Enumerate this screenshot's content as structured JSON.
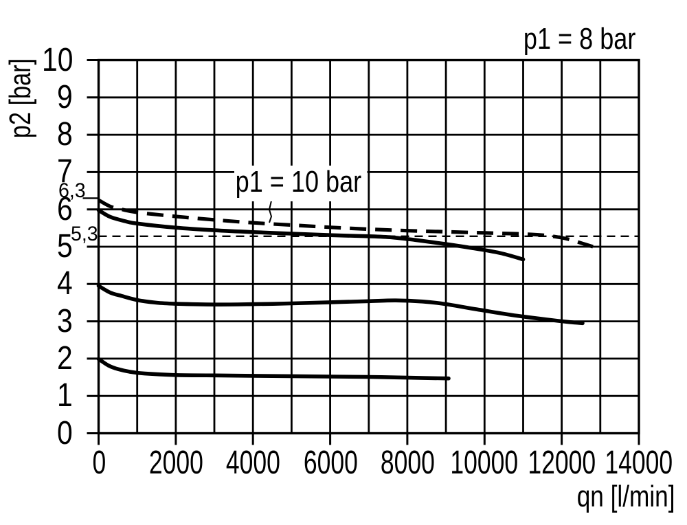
{
  "page": {
    "background_color": "#ffffff",
    "ink_color": "#000000",
    "description": "Pressure regulator flow characteristic curves: outlet pressure p2 versus flow rate qn"
  },
  "chart_data": {
    "type": "line",
    "title": "",
    "xlabel": "qn [l/min]",
    "ylabel": "p2 [bar]",
    "xlim": [
      0,
      14000
    ],
    "ylim": [
      0,
      10
    ],
    "grid": true,
    "x_grid_step": 1000,
    "y_grid_step": 1,
    "x_ticks": [
      0,
      2000,
      4000,
      6000,
      8000,
      10000,
      12000,
      14000
    ],
    "y_ticks": [
      0,
      1,
      2,
      3,
      4,
      5,
      6,
      7,
      8,
      9,
      10
    ],
    "y_markers": [
      {
        "label": "6,3",
        "value": 6.3,
        "tick": true
      },
      {
        "label": "5,3",
        "value": 5.3,
        "tick": false
      }
    ],
    "annotations": [
      {
        "text": "p1 = 8 bar",
        "role": "inlet-pressure-condition"
      },
      {
        "text": "p1 = 10 bar",
        "role": "dashed-curve-label",
        "leader_to_curve": "p1 = 10 bar"
      }
    ],
    "series": [
      {
        "name": "p1 = 10 bar",
        "style": "dashed-bold",
        "points": [
          [
            0,
            6.25
          ],
          [
            300,
            6.08
          ],
          [
            600,
            6.0
          ],
          [
            1000,
            5.92
          ],
          [
            2000,
            5.81
          ],
          [
            3000,
            5.72
          ],
          [
            4000,
            5.64
          ],
          [
            5000,
            5.58
          ],
          [
            6000,
            5.52
          ],
          [
            7000,
            5.47
          ],
          [
            8000,
            5.43
          ],
          [
            9000,
            5.4
          ],
          [
            10000,
            5.37
          ],
          [
            11000,
            5.34
          ],
          [
            11600,
            5.3
          ],
          [
            12100,
            5.22
          ],
          [
            12500,
            5.1
          ],
          [
            12810,
            5.0
          ]
        ]
      },
      {
        "name": "p1 = 8 bar upper curve",
        "style": "solid-bold",
        "points": [
          [
            0,
            5.98
          ],
          [
            300,
            5.8
          ],
          [
            700,
            5.68
          ],
          [
            1000,
            5.62
          ],
          [
            2000,
            5.51
          ],
          [
            3000,
            5.44
          ],
          [
            4000,
            5.39
          ],
          [
            5000,
            5.35
          ],
          [
            6000,
            5.31
          ],
          [
            7000,
            5.28
          ],
          [
            7600,
            5.25
          ],
          [
            8200,
            5.18
          ],
          [
            9000,
            5.07
          ],
          [
            9700,
            4.96
          ],
          [
            10400,
            4.83
          ],
          [
            11000,
            4.66
          ]
        ]
      },
      {
        "name": "5,3 bar reference line",
        "style": "dashed-thin",
        "points": [
          [
            0,
            5.28
          ],
          [
            14000,
            5.28
          ]
        ]
      },
      {
        "name": "p1 = 8 bar middle curve",
        "style": "solid-bold",
        "points": [
          [
            0,
            3.95
          ],
          [
            300,
            3.77
          ],
          [
            600,
            3.68
          ],
          [
            1000,
            3.57
          ],
          [
            1500,
            3.5
          ],
          [
            2000,
            3.47
          ],
          [
            3000,
            3.45
          ],
          [
            4000,
            3.46
          ],
          [
            5000,
            3.48
          ],
          [
            6000,
            3.51
          ],
          [
            7000,
            3.54
          ],
          [
            7700,
            3.56
          ],
          [
            8400,
            3.53
          ],
          [
            9000,
            3.46
          ],
          [
            9800,
            3.32
          ],
          [
            10700,
            3.17
          ],
          [
            11600,
            3.05
          ],
          [
            12200,
            2.98
          ],
          [
            12540,
            2.95
          ]
        ]
      },
      {
        "name": "p1 = 8 bar lower curve",
        "style": "solid-bold",
        "points": [
          [
            0,
            1.99
          ],
          [
            250,
            1.82
          ],
          [
            500,
            1.72
          ],
          [
            800,
            1.65
          ],
          [
            1200,
            1.6
          ],
          [
            2000,
            1.56
          ],
          [
            3000,
            1.55
          ],
          [
            4000,
            1.54
          ],
          [
            5000,
            1.53
          ],
          [
            6000,
            1.52
          ],
          [
            7000,
            1.51
          ],
          [
            8000,
            1.49
          ],
          [
            9070,
            1.47
          ]
        ]
      }
    ]
  }
}
